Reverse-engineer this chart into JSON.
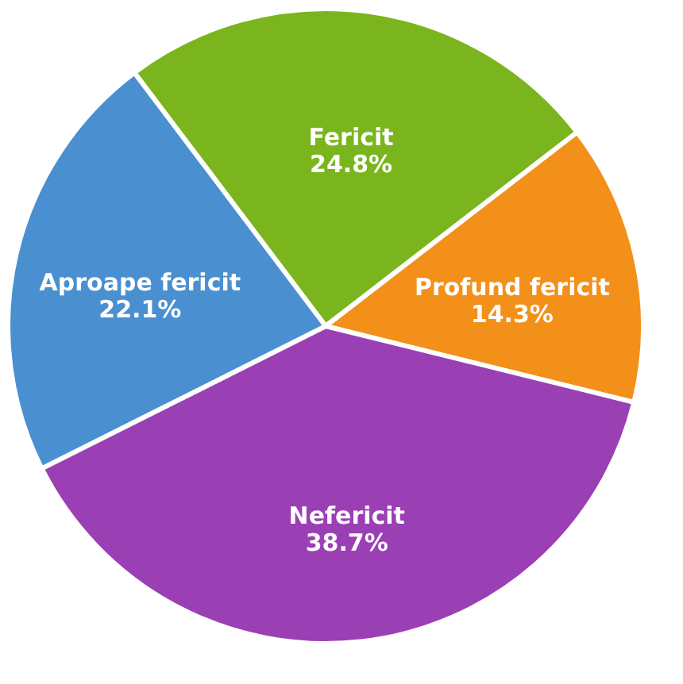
{
  "chart_data": {
    "type": "pie",
    "categories": [
      "Fericit",
      "Profund fericit",
      "Nefericit",
      "Aproape fericit"
    ],
    "values": [
      24.8,
      14.3,
      38.7,
      22.1
    ],
    "colors": [
      "#7ab51d",
      "#f39019",
      "#9b3fb5",
      "#4a90d0"
    ],
    "value_labels": [
      "24.8%",
      "14.3%",
      "38.7%",
      "22.1%"
    ],
    "legend": false
  }
}
